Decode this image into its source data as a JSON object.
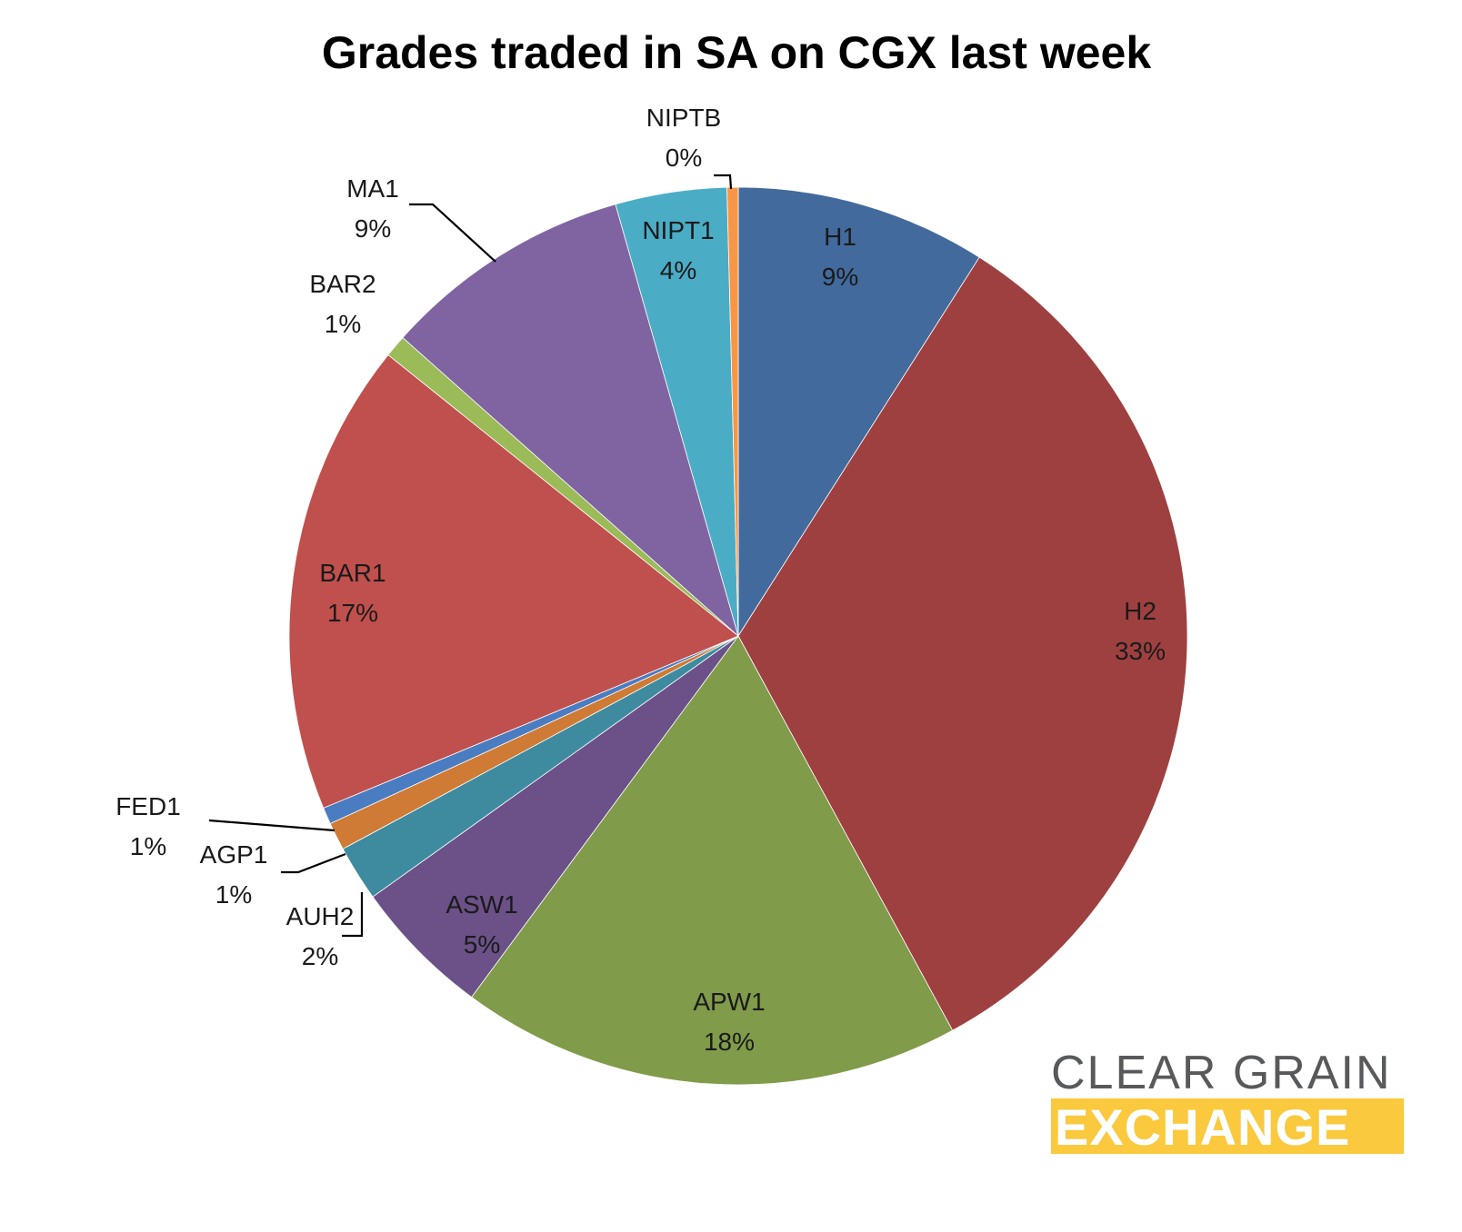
{
  "chart_data": {
    "type": "pie",
    "title": "Grades traded in SA on CGX last week",
    "start_angle_deg": 0,
    "direction": "clockwise",
    "slices": [
      {
        "name": "H1",
        "value": 9,
        "label": "9%",
        "color": "#426a9c"
      },
      {
        "name": "H2",
        "value": 33,
        "label": "33%",
        "color": "#9f4040"
      },
      {
        "name": "APW1",
        "value": 18,
        "label": "18%",
        "color": "#809b49"
      },
      {
        "name": "ASW1",
        "value": 5,
        "label": "5%",
        "color": "#6b5188"
      },
      {
        "name": "AUH2",
        "value": 2,
        "label": "2%",
        "color": "#3e8ba0"
      },
      {
        "name": "AGP1",
        "value": 1,
        "label": "1%",
        "color": "#cf7a35"
      },
      {
        "name": "FED1",
        "value": 0.6,
        "label": "1%",
        "color": "#4a7cc2"
      },
      {
        "name": "BAR1",
        "value": 17,
        "label": "17%",
        "color": "#c0504d"
      },
      {
        "name": "BAR2",
        "value": 0.8,
        "label": "1%",
        "color": "#9bbb59"
      },
      {
        "name": "MA1",
        "value": 9,
        "label": "9%",
        "color": "#8064a2"
      },
      {
        "name": "NIPT1",
        "value": 4,
        "label": "4%",
        "color": "#4bacc6"
      },
      {
        "name": "NIPTB",
        "value": 0.4,
        "label": "0%",
        "color": "#f79646"
      }
    ]
  },
  "logo": {
    "line1": "CLEAR GRAIN",
    "line2": "EXCHANGE",
    "line1_color": "#58595b",
    "line2_color": "#fac93e"
  }
}
